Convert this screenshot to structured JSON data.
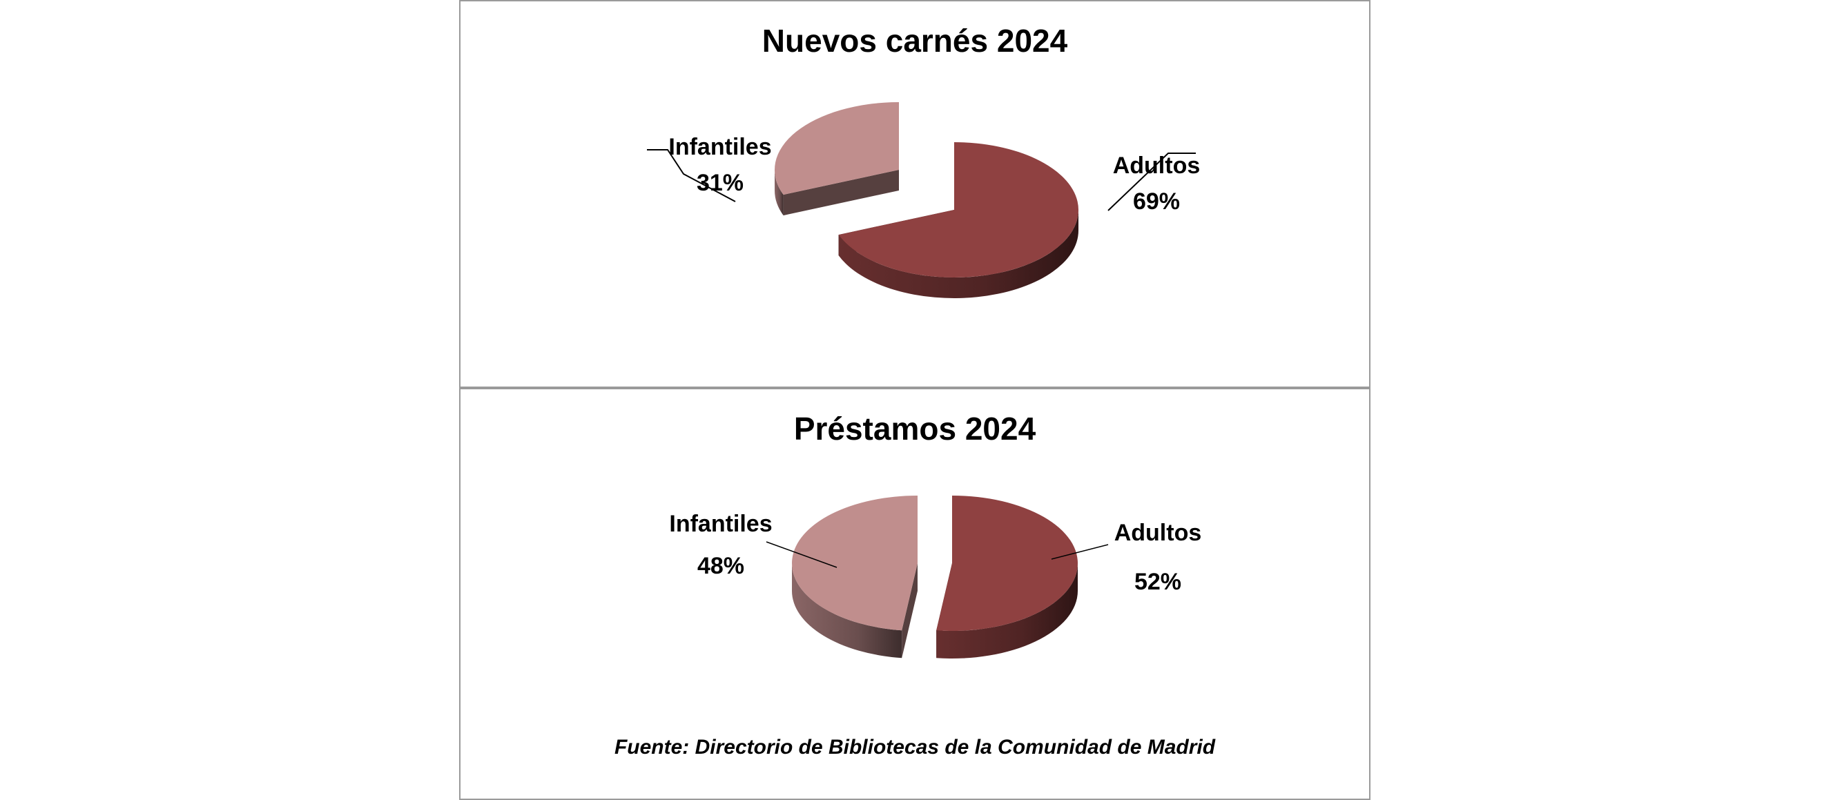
{
  "chart_data": [
    {
      "type": "pie",
      "title": "Nuevos carnés 2024",
      "categories": [
        "Adultos",
        "Infantiles"
      ],
      "values": [
        69,
        31
      ],
      "value_labels": [
        "69%",
        "31%"
      ],
      "colors": [
        "#8f4141",
        "#c08e8d"
      ],
      "style": "3d-exploded"
    },
    {
      "type": "pie",
      "title": "Préstamos 2024",
      "categories": [
        "Adultos",
        "Infantiles"
      ],
      "values": [
        52,
        48
      ],
      "value_labels": [
        "52%",
        "48%"
      ],
      "colors": [
        "#8f4141",
        "#c08e8d"
      ],
      "style": "3d-exploded"
    }
  ],
  "source": "Fuente: Directorio de Bibliotecas de la Comunidad de Madrid"
}
